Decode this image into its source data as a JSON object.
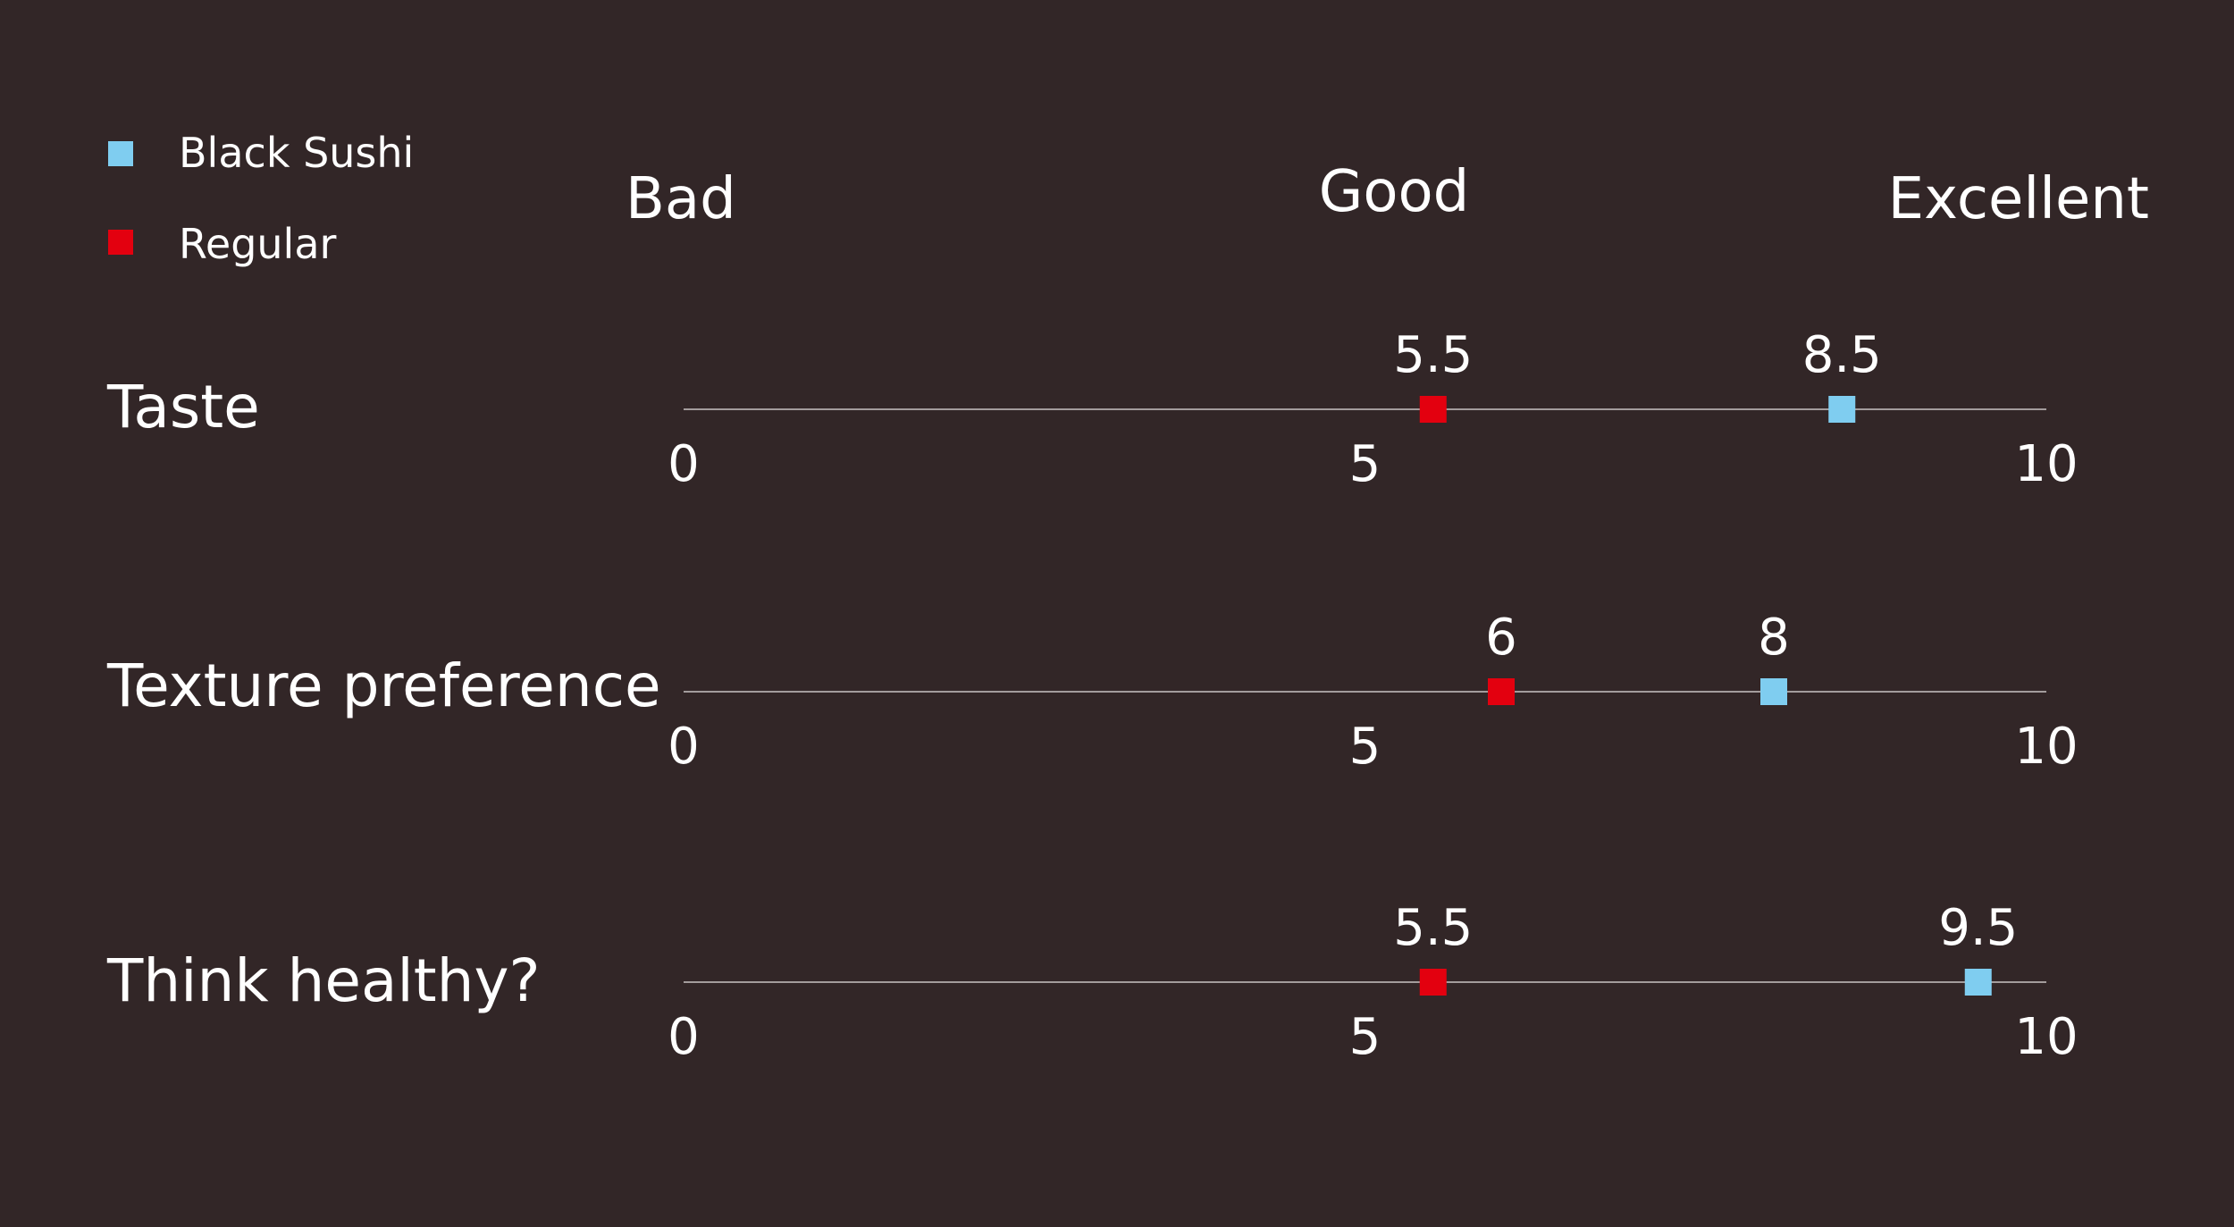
{
  "chart_data": {
    "type": "scatter",
    "title": "",
    "legend_position": "top-left",
    "scale_labels": [
      "Bad",
      "Good",
      "Excellent"
    ],
    "xlim": [
      0,
      10
    ],
    "ticks": [
      "0",
      "5",
      "10"
    ],
    "series": [
      {
        "name": "Black Sushi",
        "color": "#7fcdf0"
      },
      {
        "name": "Regular",
        "color": "#e3000f"
      }
    ],
    "rows": [
      {
        "label": "Taste",
        "values": {
          "Regular": 5.5,
          "Black Sushi": 8.5
        },
        "value_labels": {
          "Regular": "5.5",
          "Black Sushi": "8.5"
        }
      },
      {
        "label": "Texture preference",
        "values": {
          "Regular": 6,
          "Black Sushi": 8
        },
        "value_labels": {
          "Regular": "6",
          "Black Sushi": "8"
        }
      },
      {
        "label": "Think healthy?",
        "values": {
          "Regular": 5.5,
          "Black Sushi": 9.5
        },
        "value_labels": {
          "Regular": "5.5",
          "Black Sushi": "9.5"
        }
      }
    ]
  }
}
